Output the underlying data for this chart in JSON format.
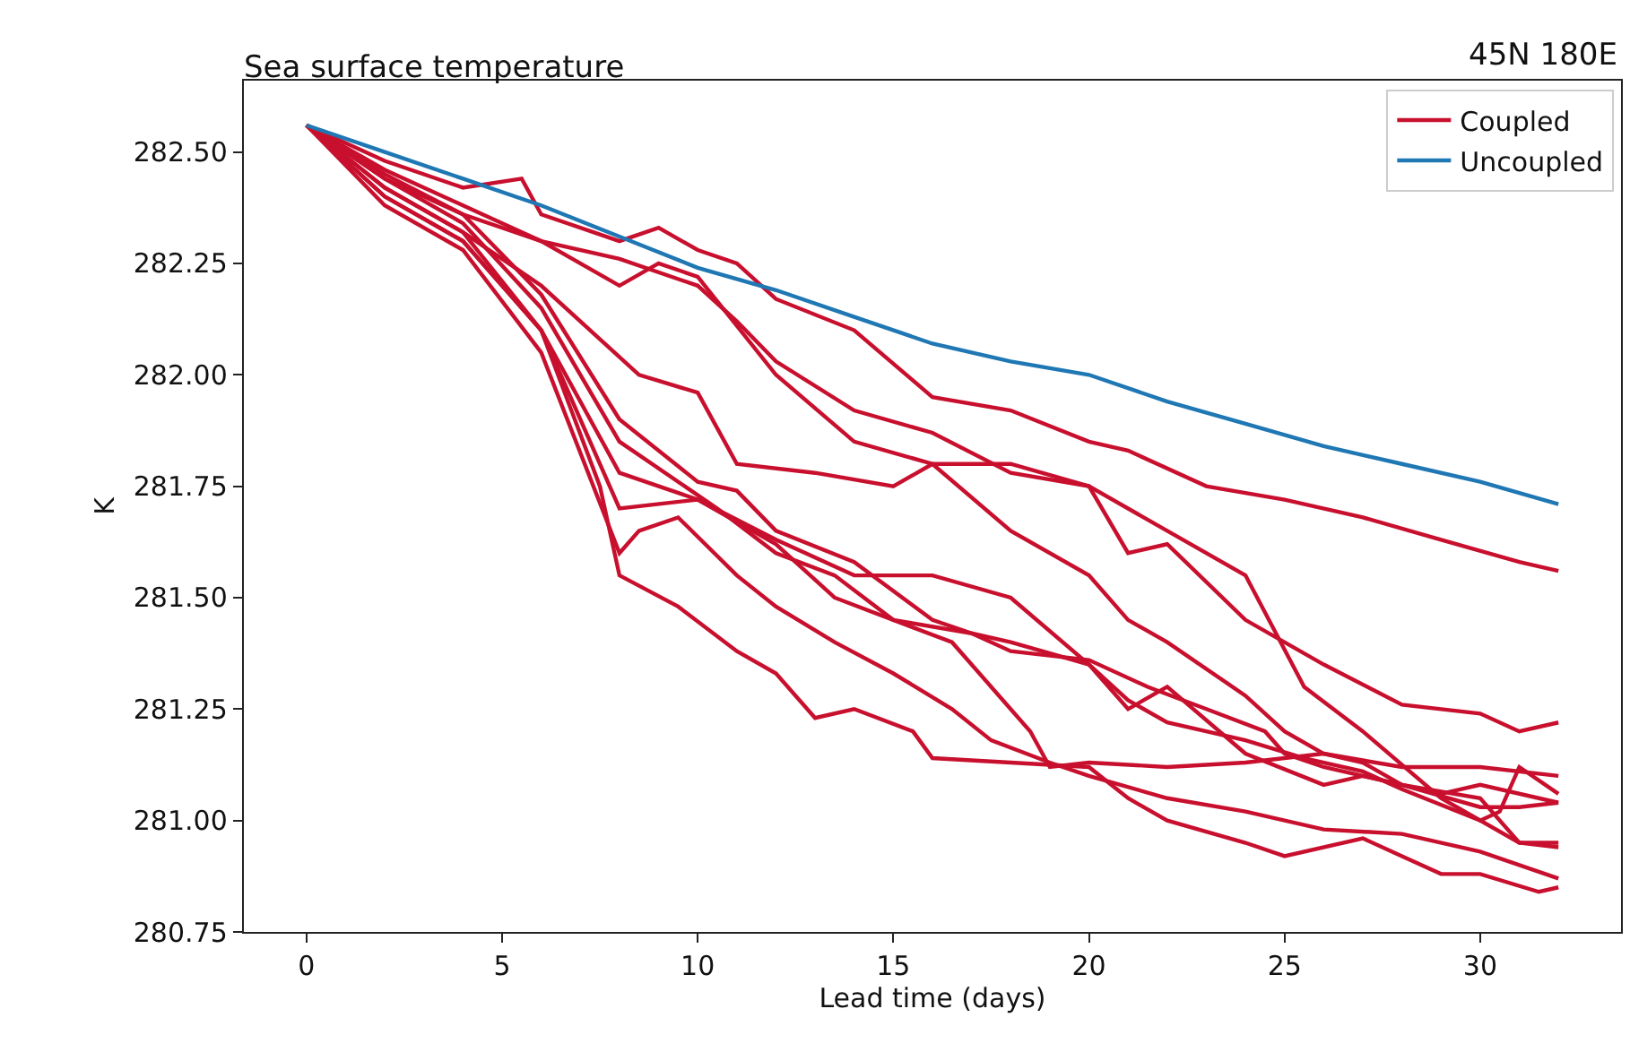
{
  "chart_data": {
    "type": "line",
    "title": "Sea surface temperature",
    "annotations": [
      "45N 180E"
    ],
    "xlabel": "Lead time (days)",
    "ylabel": "K",
    "xlim": [
      -1.6,
      33.6
    ],
    "xticks": [
      0,
      5,
      10,
      15,
      20,
      25,
      30
    ],
    "ylim": [
      280.75,
      282.66
    ],
    "yticks": [
      {
        "value": 280.75,
        "label": "280.75"
      },
      {
        "value": 281.0,
        "label": "281.00"
      },
      {
        "value": 281.25,
        "label": "281.25"
      },
      {
        "value": 281.5,
        "label": "281.50"
      },
      {
        "value": 281.75,
        "label": "281.75"
      },
      {
        "value": 282.0,
        "label": "282.00"
      },
      {
        "value": 282.25,
        "label": "282.25"
      },
      {
        "value": 282.5,
        "label": "282.50"
      }
    ],
    "legend": "top right",
    "line_style": "solid",
    "marker": "none",
    "series": [
      {
        "name": "Coupled",
        "color": "#c8102e",
        "x": [
          0,
          2,
          4,
          5.5,
          6,
          8,
          9,
          10,
          11,
          12,
          14,
          16,
          18,
          20,
          21,
          23,
          25,
          27,
          29,
          31,
          32
        ],
        "values": [
          282.56,
          282.48,
          282.42,
          282.44,
          282.36,
          282.3,
          282.33,
          282.28,
          282.25,
          282.17,
          282.1,
          281.95,
          281.92,
          281.85,
          281.83,
          281.75,
          281.72,
          281.68,
          281.63,
          281.58,
          281.56
        ]
      },
      {
        "color": "#c8102e",
        "x": [
          0,
          2,
          4,
          6,
          8,
          10,
          11,
          12,
          14,
          16,
          18,
          20,
          21,
          22,
          24,
          26,
          28,
          30,
          31,
          32
        ],
        "values": [
          282.56,
          282.46,
          282.38,
          282.3,
          282.26,
          282.2,
          282.12,
          282.03,
          281.92,
          281.87,
          281.78,
          281.75,
          281.6,
          281.62,
          281.45,
          281.35,
          281.26,
          281.24,
          281.2,
          281.22
        ]
      },
      {
        "color": "#c8102e",
        "x": [
          0,
          2,
          4,
          6,
          8,
          9,
          10,
          12,
          14,
          16,
          18,
          20,
          21,
          22,
          24,
          25,
          26,
          28,
          30,
          32
        ],
        "values": [
          282.56,
          282.44,
          282.36,
          282.3,
          282.2,
          282.25,
          282.22,
          282.0,
          281.85,
          281.8,
          281.65,
          281.55,
          281.45,
          281.4,
          281.28,
          281.2,
          281.15,
          281.12,
          281.12,
          281.1
        ]
      },
      {
        "color": "#c8102e",
        "x": [
          0,
          2,
          4,
          6,
          8.5,
          10,
          11,
          13,
          15,
          16,
          18,
          20,
          22,
          24,
          25.5,
          27,
          29,
          31,
          32
        ],
        "values": [
          282.56,
          282.42,
          282.32,
          282.2,
          282.0,
          281.96,
          281.8,
          281.78,
          281.75,
          281.8,
          281.8,
          281.75,
          281.65,
          281.55,
          281.3,
          281.2,
          281.05,
          280.95,
          280.95
        ]
      },
      {
        "color": "#c8102e",
        "x": [
          0,
          2,
          4,
          6,
          8,
          10,
          12,
          14,
          16,
          18,
          20,
          21,
          22,
          24,
          26,
          27,
          29,
          30,
          32
        ],
        "values": [
          282.56,
          282.4,
          282.3,
          282.1,
          281.7,
          281.72,
          281.63,
          281.55,
          281.55,
          281.5,
          281.35,
          281.25,
          281.3,
          281.15,
          281.08,
          281.1,
          281.06,
          281.08,
          281.04
        ]
      },
      {
        "color": "#c8102e",
        "x": [
          0,
          2,
          4,
          6,
          7.5,
          8,
          9.5,
          11,
          12,
          13,
          14,
          15.5,
          16,
          18,
          20,
          21,
          22,
          24,
          25,
          27,
          28,
          29,
          30,
          31.5,
          32
        ],
        "values": [
          282.56,
          282.4,
          282.3,
          282.1,
          281.75,
          281.55,
          281.48,
          281.38,
          281.33,
          281.23,
          281.25,
          281.2,
          281.14,
          281.13,
          281.12,
          281.05,
          281.0,
          280.95,
          280.92,
          280.96,
          280.92,
          280.88,
          280.88,
          280.84,
          280.85
        ]
      },
      {
        "color": "#c8102e",
        "x": [
          0,
          2,
          4,
          6,
          8,
          8.5,
          9.5,
          11,
          12,
          13.5,
          15,
          16.5,
          17.5,
          19,
          20,
          22,
          24,
          26,
          28,
          30,
          32
        ],
        "values": [
          282.56,
          282.38,
          282.28,
          282.05,
          281.6,
          281.65,
          281.68,
          281.55,
          281.48,
          281.4,
          281.33,
          281.25,
          281.18,
          281.13,
          281.1,
          281.05,
          281.02,
          280.98,
          280.97,
          280.93,
          280.87
        ]
      },
      {
        "color": "#c8102e",
        "x": [
          0,
          2,
          4,
          6,
          8,
          10,
          12,
          13.5,
          15,
          16.5,
          17.5,
          18.5,
          19,
          20,
          22,
          24,
          26,
          27,
          28,
          30,
          31,
          32
        ],
        "values": [
          282.56,
          282.42,
          282.32,
          282.1,
          281.78,
          281.72,
          281.62,
          281.5,
          281.45,
          281.4,
          281.3,
          281.2,
          281.12,
          281.13,
          281.12,
          281.13,
          281.15,
          281.13,
          281.08,
          281.05,
          280.95,
          280.94
        ]
      },
      {
        "color": "#c8102e",
        "x": [
          0,
          2,
          4,
          6,
          8,
          10.5,
          12,
          13.5,
          15,
          17,
          18,
          20,
          21,
          22,
          24,
          25.5,
          27,
          28,
          30,
          30.5,
          31,
          32
        ],
        "values": [
          282.56,
          282.44,
          282.34,
          282.15,
          281.85,
          281.7,
          281.6,
          281.55,
          281.45,
          281.42,
          281.4,
          281.35,
          281.27,
          281.22,
          281.18,
          281.14,
          281.11,
          281.07,
          281.0,
          281.02,
          281.12,
          281.06
        ]
      },
      {
        "color": "#c8102e",
        "x": [
          0,
          2,
          4,
          6,
          8,
          10,
          11,
          12,
          14,
          16,
          17,
          18,
          20,
          21.5,
          23,
          24.5,
          25,
          26,
          28,
          30,
          31,
          32
        ],
        "values": [
          282.56,
          282.45,
          282.36,
          282.18,
          281.9,
          281.76,
          281.74,
          281.65,
          281.58,
          281.45,
          281.42,
          281.38,
          281.36,
          281.3,
          281.25,
          281.2,
          281.15,
          281.12,
          281.08,
          281.03,
          281.03,
          281.04
        ]
      },
      {
        "name": "Uncoupled",
        "color": "#1f77b4",
        "x": [
          0,
          2,
          4,
          6,
          8,
          10,
          12,
          14,
          16,
          18,
          20,
          22,
          24,
          26,
          28,
          30,
          32
        ],
        "values": [
          282.56,
          282.5,
          282.44,
          282.38,
          282.31,
          282.24,
          282.19,
          282.13,
          282.07,
          282.03,
          282.0,
          281.94,
          281.89,
          281.84,
          281.8,
          281.76,
          281.71
        ]
      }
    ]
  }
}
